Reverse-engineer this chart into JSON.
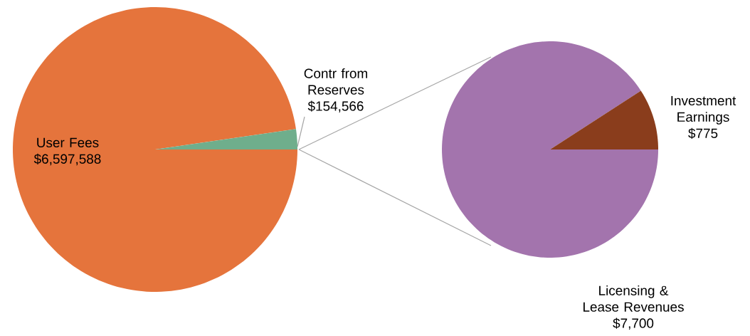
{
  "chart_data": [
    {
      "type": "pie",
      "categories": [
        "User Fees",
        "Contr from Reserves"
      ],
      "values": [
        6597588,
        154566
      ],
      "colors": [
        "#e5743c",
        "#6fae8c"
      ],
      "value_labels": [
        "$6,597,588",
        "$154,566"
      ]
    },
    {
      "type": "pie",
      "categories": [
        "Licensing & Lease Revenues",
        "Investment Earnings"
      ],
      "values": [
        7700,
        775
      ],
      "colors": [
        "#a374ad",
        "#8a3d1c"
      ],
      "value_labels": [
        "$7,700",
        "$775"
      ]
    }
  ]
}
